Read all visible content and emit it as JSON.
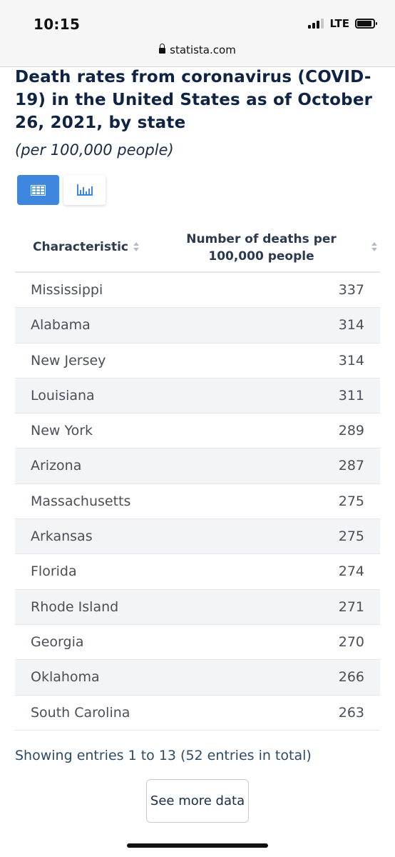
{
  "status_bar": {
    "time": "10:15",
    "network": "LTE"
  },
  "browser": {
    "url": "statista.com"
  },
  "page": {
    "title": "Death rates from coronavirus (COVID-19) in the United States as of October 26, 2021, by state",
    "subtitle": "(per 100,000 people)"
  },
  "view_toggle": {
    "active": "table"
  },
  "table": {
    "headers": [
      "Characteristic",
      "Number of deaths per 100,000 people"
    ],
    "rows": [
      [
        "Mississippi",
        "337"
      ],
      [
        "Alabama",
        "314"
      ],
      [
        "New Jersey",
        "314"
      ],
      [
        "Louisiana",
        "311"
      ],
      [
        "New York",
        "289"
      ],
      [
        "Arizona",
        "287"
      ],
      [
        "Massachusetts",
        "275"
      ],
      [
        "Arkansas",
        "275"
      ],
      [
        "Florida",
        "274"
      ],
      [
        "Rhode Island",
        "271"
      ],
      [
        "Georgia",
        "270"
      ],
      [
        "Oklahoma",
        "266"
      ],
      [
        "South Carolina",
        "263"
      ]
    ]
  },
  "pagination": {
    "text": "Showing entries 1 to 13 (52 entries in total)"
  },
  "actions": {
    "see_more_label": "See more data"
  },
  "colors": {
    "accent": "#3f86de",
    "title": "#0f2344",
    "row_alt": "#f3f4f6"
  }
}
